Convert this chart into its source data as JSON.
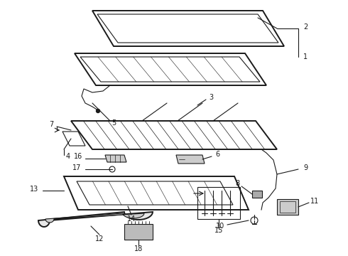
{
  "bg_color": "#ffffff",
  "line_color": "#1a1a1a",
  "lw_main": 1.4,
  "lw_thin": 0.8,
  "lw_hatch": 0.5,
  "figsize": [
    4.9,
    3.6
  ],
  "dpi": 100
}
